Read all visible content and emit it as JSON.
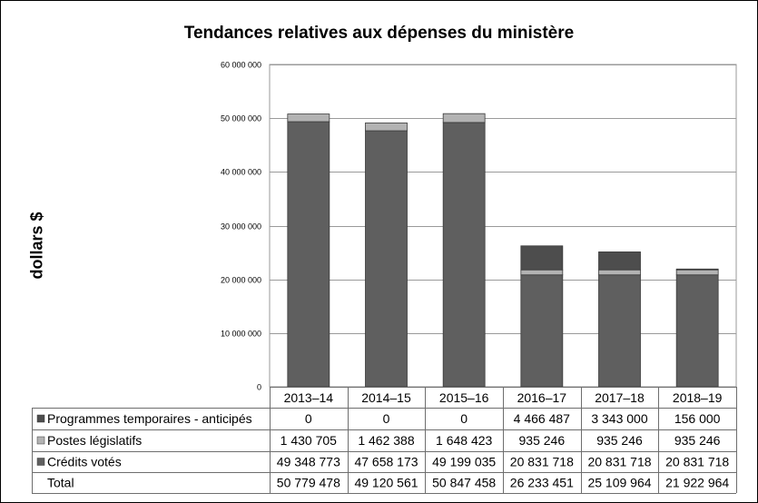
{
  "chart_data": {
    "type": "bar",
    "stacked": true,
    "title": "Tendances relatives aux dépenses du ministère",
    "ylabel": "dollars $",
    "xlabel": "",
    "ylim": [
      0,
      60000000
    ],
    "yticks": [
      "0",
      "10 000 000",
      "20 000 000",
      "30 000 000",
      "40 000 000",
      "50 000 000",
      "60 000 000"
    ],
    "ytick_values": [
      0,
      10000000,
      20000000,
      30000000,
      40000000,
      50000000,
      60000000
    ],
    "grid": true,
    "legend": "data-table",
    "categories": [
      "2013–14",
      "2014–15",
      "2015–16",
      "2016–17",
      "2017–18",
      "2018–19"
    ],
    "series": [
      {
        "name": "Programmes temporaires - anticipés",
        "color": "#4d4d4d",
        "values": [
          0,
          0,
          0,
          4466487,
          3343000,
          156000
        ],
        "labels": [
          "0",
          "0",
          "0",
          "4 466 487",
          "3 343 000",
          "156 000"
        ]
      },
      {
        "name": "Postes législatifs",
        "color": "#b3b3b3",
        "values": [
          1430705,
          1462388,
          1648423,
          935246,
          935246,
          935246
        ],
        "labels": [
          "1 430 705",
          "1 462 388",
          "1 648 423",
          "935 246",
          "935 246",
          "935 246"
        ]
      },
      {
        "name": "Crédits votés",
        "color": "#5f5f5f",
        "values": [
          49348773,
          47658173,
          49199035,
          20831718,
          20831718,
          20831718
        ],
        "labels": [
          "49 348 773",
          "47 658 173",
          "49 199 035",
          "20 831 718",
          "20 831 718",
          "20 831 718"
        ]
      }
    ],
    "total": {
      "name": "Total",
      "labels": [
        "50 779 478",
        "49 120 561",
        "50 847 458",
        "26 233 451",
        "25 109 964",
        "21 922 964"
      ]
    }
  }
}
